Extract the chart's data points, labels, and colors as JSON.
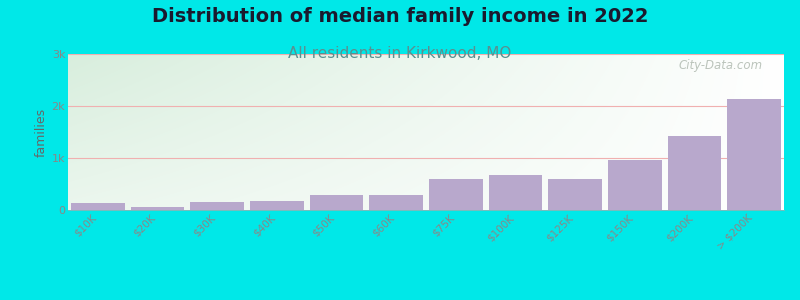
{
  "title": "Distribution of median family income in 2022",
  "subtitle": "All residents in Kirkwood, MO",
  "ylabel": "families",
  "categories": [
    "$10K",
    "$20K",
    "$30K",
    "$40K",
    "$50K",
    "$60K",
    "$75K",
    "$100K",
    "$125K",
    "$150K",
    "$200K",
    "> $200K"
  ],
  "values": [
    130,
    60,
    150,
    170,
    290,
    280,
    590,
    680,
    590,
    960,
    1420,
    2130
  ],
  "bar_color": "#b8a8cc",
  "ylim": [
    0,
    3000
  ],
  "yticks": [
    0,
    1000,
    2000,
    3000
  ],
  "ytick_labels": [
    "0",
    "1k",
    "2k",
    "3k"
  ],
  "bg_color": "#00e8e8",
  "plot_bg_top_left": "#d8eedd",
  "plot_bg_top_right": "#eef8ee",
  "plot_bg_bottom": "#ffffff",
  "title_fontsize": 14,
  "subtitle_fontsize": 11,
  "subtitle_color": "#5a9090",
  "watermark": "City-Data.com",
  "grid_color": "#f0b0b0",
  "axis_label_color": "#666666",
  "tick_label_color": "#888888"
}
